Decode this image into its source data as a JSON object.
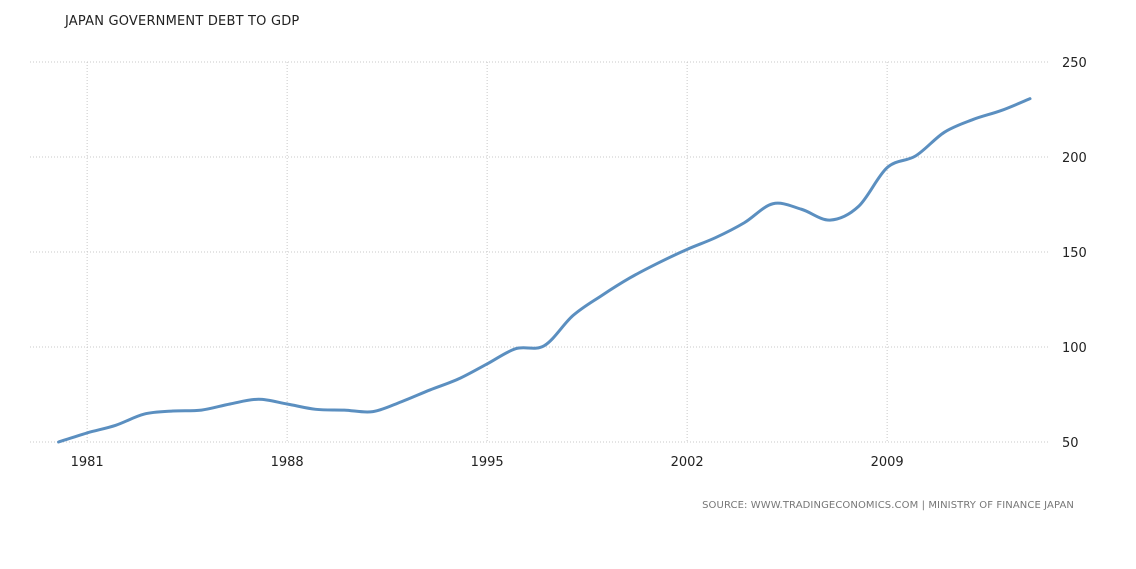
{
  "chart_data": {
    "type": "line",
    "title": "JAPAN GOVERNMENT DEBT TO GDP",
    "source": "SOURCE: WWW.TRADINGECONOMICS.COM | MINISTRY OF FINANCE JAPAN",
    "xlabel": "",
    "ylabel": "",
    "xlim": [
      1979,
      2014.7
    ],
    "ylim": [
      50,
      250
    ],
    "x_ticks": [
      "1981",
      "1988",
      "1995",
      "2002",
      "2009"
    ],
    "y_ticks": [
      "50",
      "100",
      "150",
      "200",
      "250"
    ],
    "y_axis_position": "right",
    "grid": true,
    "line_color": "#5b8fc0",
    "series": [
      {
        "name": "Government Debt to GDP",
        "x": [
          1980,
          1981,
          1982,
          1983,
          1984,
          1985,
          1986,
          1987,
          1988,
          1989,
          1990,
          1991,
          1992,
          1993,
          1994,
          1995,
          1996,
          1997,
          1998,
          1999,
          2000,
          2001,
          2002,
          2003,
          2004,
          2005,
          2006,
          2007,
          2008,
          2009,
          2010,
          2011,
          2012,
          2013,
          2014
        ],
        "values": [
          50,
          54.8,
          58.8,
          64.7,
          66.3,
          66.8,
          70,
          72.5,
          70,
          67.2,
          66.8,
          66,
          71.2,
          77.4,
          83.2,
          91.1,
          99.1,
          100.7,
          116.5,
          127,
          136.4,
          144.3,
          151.4,
          157.6,
          165.4,
          175.4,
          172.5,
          166.8,
          174,
          194.4,
          200.6,
          213,
          219.7,
          224.5,
          230.7
        ]
      }
    ]
  }
}
